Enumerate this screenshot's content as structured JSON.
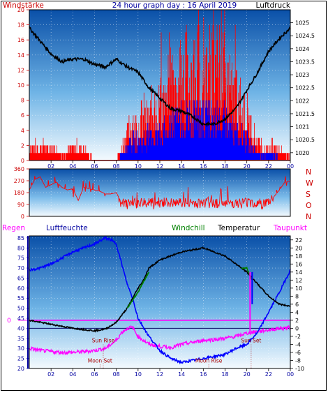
{
  "header": {
    "title": "24 hour graph day : 16 April 2019",
    "left_label": "Windstärke",
    "right_label": "Luftdruck"
  },
  "bottom_header": {
    "regen": "Regen",
    "luftfeuchte": "Luftfeuchte",
    "windchill": "Windchill",
    "temperatur": "Temperatur",
    "taupunkt": "Taupunkt"
  },
  "colors": {
    "wind": "#ff0000",
    "gust": "#ff0000",
    "wind_avg": "#0000ff",
    "pressure": "#000000",
    "direction": "#ff0000",
    "humidity": "#0000ff",
    "temperature": "#000000",
    "windchill": "#008000",
    "dewpoint": "#ff00ff",
    "rain": "#ff00ff",
    "regen_label": "#ff00ff",
    "luftfeuchte_label": "#0000a0",
    "windchill_label": "#008000",
    "taupunkt_label": "#ff00ff",
    "axis_red": "#cc0000",
    "axis_blue": "#0000a0",
    "astro": "#aa0000"
  },
  "chart_data": [
    {
      "type": "bar",
      "x_ticks": [
        "02",
        "04",
        "06",
        "08",
        "10",
        "12",
        "14",
        "16",
        "18",
        "20",
        "22",
        "00"
      ],
      "left_axis": {
        "ticks": [
          "0",
          "2",
          "4",
          "6",
          "8",
          "10",
          "12",
          "14",
          "16",
          "18",
          "20"
        ],
        "ylim": [
          0,
          20
        ]
      },
      "right_axis": {
        "ticks": [
          "1020",
          "1020.5",
          "1021",
          "1021.5",
          "1022",
          "1022.5",
          "1023",
          "1023.5",
          "1024",
          "1024.5",
          "1025"
        ],
        "ylim": [
          1019.7,
          1025.5
        ]
      },
      "series": [
        {
          "hours": [
            0,
            1,
            2,
            3,
            4,
            5,
            6,
            7,
            8,
            8.5,
            9,
            9.5,
            10,
            10.5,
            11,
            11.5,
            12,
            12.5,
            13,
            13.5,
            14,
            14.5,
            15,
            15.5,
            16,
            16.5,
            17,
            17.5,
            18,
            18.5,
            19,
            19.5,
            20,
            20.5,
            21,
            21.5,
            22,
            22.5,
            23,
            23.5,
            24
          ],
          "gust": [
            2,
            2,
            2,
            1,
            2,
            2,
            0,
            0,
            0,
            2,
            4,
            6,
            5,
            7,
            6,
            9,
            8,
            10,
            12,
            11,
            13,
            14,
            13,
            15,
            12,
            16,
            14,
            16,
            13,
            11,
            10,
            9,
            7,
            5,
            3,
            2,
            2,
            2,
            2,
            1,
            1
          ],
          "avg": [
            0,
            0,
            0,
            0,
            0,
            0,
            0,
            0,
            0,
            1,
            2,
            3,
            3,
            3,
            4,
            4,
            4,
            5,
            5,
            6,
            6,
            6,
            6,
            7,
            6,
            7,
            6,
            7,
            6,
            5,
            4,
            4,
            3,
            2,
            1,
            1,
            1,
            1,
            0,
            0,
            0
          ]
        },
        {
          "hours": [
            0,
            1,
            2,
            3,
            4,
            5,
            6,
            7,
            8,
            9,
            10,
            11,
            12,
            13,
            14,
            15,
            16,
            17,
            18,
            19,
            20,
            21,
            22,
            23,
            24
          ],
          "pressure": [
            1024.8,
            1024.3,
            1023.8,
            1023.5,
            1023.6,
            1023.6,
            1023.4,
            1023.3,
            1023.6,
            1023.3,
            1023.1,
            1022.5,
            1022.1,
            1021.7,
            1021.6,
            1021.4,
            1021.1,
            1021.1,
            1021.3,
            1021.7,
            1022.4,
            1023.1,
            1023.9,
            1024.4,
            1024.8
          ]
        }
      ]
    },
    {
      "type": "line",
      "y_ticks": [
        "0",
        "90",
        "180",
        "270",
        "360"
      ],
      "compass": [
        "N",
        "W",
        "S",
        "O",
        "N"
      ],
      "ylim": [
        0,
        360
      ],
      "series": [
        {
          "hours": [
            0,
            0.5,
            1,
            1.5,
            2,
            2.5,
            3,
            3.5,
            4,
            4.5,
            5,
            5.5,
            6,
            6.5,
            7,
            7.5,
            8,
            8.5,
            9,
            9.5,
            10,
            10.5,
            11,
            11.5,
            12,
            12.5,
            13,
            13.5,
            14,
            14.5,
            15,
            15.5,
            16,
            16.5,
            17,
            17.5,
            18,
            18.5,
            19,
            19.5,
            20,
            20.5,
            21,
            21.5,
            22,
            22.5,
            23,
            23.5,
            24
          ],
          "direction": [
            200,
            280,
            300,
            220,
            240,
            260,
            220,
            200,
            210,
            120,
            220,
            210,
            200,
            190,
            170,
            170,
            180,
            100,
            90,
            95,
            100,
            110,
            105,
            100,
            110,
            105,
            100,
            95,
            110,
            100,
            105,
            100,
            95,
            110,
            105,
            100,
            110,
            100,
            105,
            100,
            110,
            105,
            100,
            95,
            110,
            150,
            200,
            260,
            270
          ]
        }
      ]
    },
    {
      "type": "line",
      "left_axis": {
        "ticks": [
          "20",
          "25",
          "30",
          "35",
          "40",
          "45",
          "50",
          "55",
          "60",
          "65",
          "70",
          "75",
          "80",
          "85"
        ],
        "ylim": [
          20,
          86
        ]
      },
      "right_axis": {
        "ticks": [
          "-10",
          "-8",
          "-6",
          "-4",
          "-2",
          "0",
          "2",
          "4",
          "6",
          "8",
          "10",
          "12",
          "14",
          "16",
          "18",
          "20",
          "22"
        ],
        "ylim": [
          -10,
          23
        ]
      },
      "rain_value": "0",
      "annotations": [
        {
          "text": "Sun Rise",
          "hour": 6.8
        },
        {
          "text": "Moon Set",
          "hour": 6.5
        },
        {
          "text": "Moon Rise",
          "hour": 16.5
        },
        {
          "text": "Sun Set",
          "hour": 20.4
        }
      ],
      "series": [
        {
          "hours": [
            0,
            1,
            2,
            3,
            4,
            5,
            6,
            7,
            7.5,
            8,
            8.5,
            9,
            9.5,
            10,
            11,
            12,
            13,
            14,
            15,
            16,
            17,
            18,
            19,
            20,
            21,
            22,
            23,
            24
          ],
          "humidity": [
            69,
            70,
            72,
            75,
            78,
            80,
            82,
            85,
            84,
            82,
            72,
            62,
            55,
            45,
            36,
            29,
            25,
            23,
            24,
            25,
            26,
            27,
            30,
            32,
            38,
            48,
            58,
            69
          ]
        },
        {
          "hours": [
            0,
            1,
            2,
            3,
            4,
            5,
            6,
            7,
            8,
            9,
            9.5,
            10,
            10.5,
            11,
            12,
            13,
            14,
            15,
            16,
            17,
            18,
            19,
            20,
            21,
            22,
            23,
            24
          ],
          "temperature": [
            2,
            1.5,
            1,
            0.5,
            0,
            -0.3,
            -0.6,
            -0.2,
            1.5,
            5,
            7.5,
            10,
            12,
            15,
            17,
            18,
            19,
            19.5,
            20,
            19,
            18,
            16,
            14,
            11,
            8,
            6,
            5.5
          ]
        },
        {
          "hours": [
            9,
            9.5,
            10,
            11,
            19.5,
            20,
            20.5,
            22,
            23,
            24
          ],
          "windchill": [
            5,
            7,
            9,
            14,
            15,
            15,
            12,
            8,
            6,
            5.5
          ]
        },
        {
          "hours": [
            0,
            1,
            2,
            3,
            4,
            5,
            6,
            7,
            8,
            8.5,
            9,
            9.5,
            10,
            11,
            12,
            13,
            14,
            15,
            16,
            17,
            18,
            19,
            20,
            21,
            22,
            23,
            24
          ],
          "dewpoint": [
            -5,
            -5.5,
            -5.8,
            -6,
            -6,
            -5.8,
            -5.5,
            -5,
            -3,
            -1,
            0,
            0.2,
            -2,
            -4,
            -4.5,
            -4.8,
            -4,
            -3.5,
            -3,
            -2.8,
            -2.5,
            -2,
            -1.2,
            -0.8,
            -0.4,
            0,
            0.2
          ]
        }
      ]
    }
  ]
}
